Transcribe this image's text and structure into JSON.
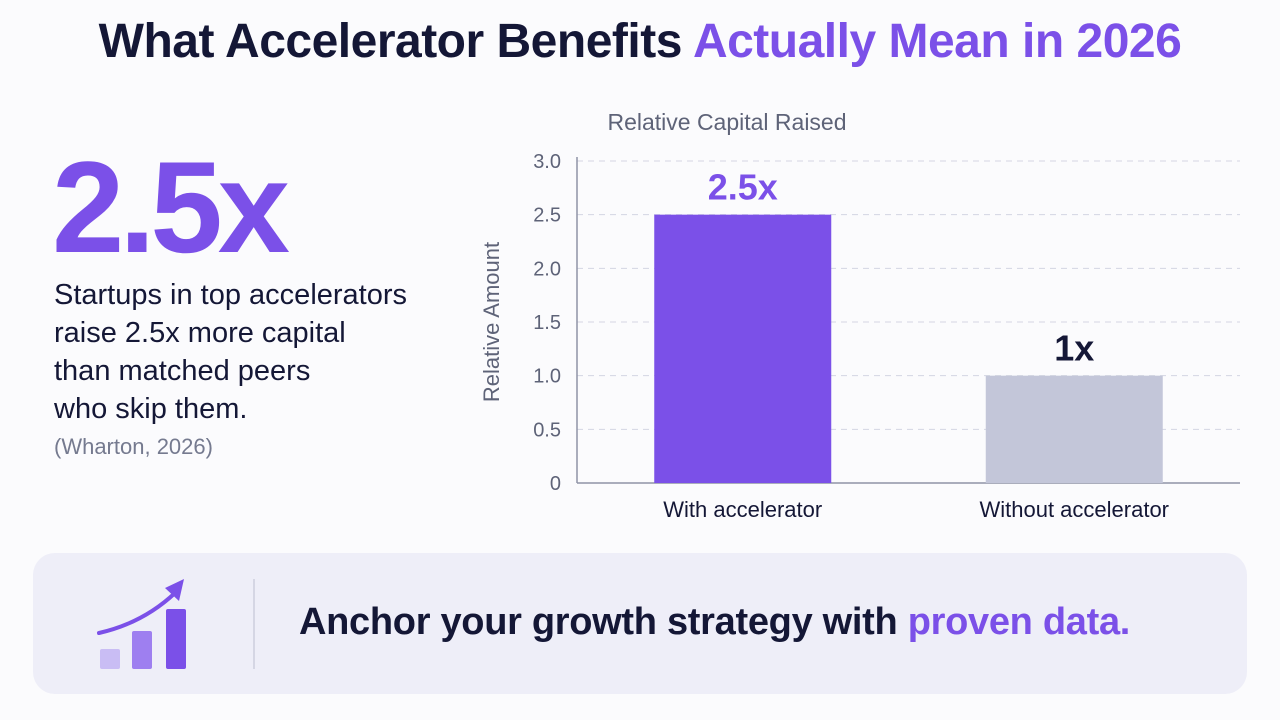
{
  "header": {
    "title_main": "What Accelerator Benefits ",
    "title_accent": "Actually Mean in 2026"
  },
  "stat": {
    "value": "2.5x",
    "description_lines": [
      "Startups in top accelerators",
      "raise 2.5x more capital",
      "than matched peers",
      "who skip them."
    ],
    "source": "(Wharton, 2026)"
  },
  "chart_data": {
    "type": "bar",
    "title": "Relative Capital Raised",
    "ylabel": "Relative Amount",
    "xlabel": "",
    "categories": [
      "With accelerator",
      "Without accelerator"
    ],
    "values": [
      2.5,
      1.0
    ],
    "data_labels": [
      "2.5x",
      "1x"
    ],
    "bar_colors": [
      "#7b50e8",
      "#c3c6d9"
    ],
    "data_label_colors": [
      "#7b50e8",
      "#141736"
    ],
    "ylim": [
      0,
      3.0
    ],
    "yticks": [
      0,
      0.5,
      1.0,
      1.5,
      2.0,
      2.5,
      3.0
    ],
    "ytick_labels": [
      "0",
      "0.5",
      "1.0",
      "1.5",
      "2.0",
      "2.5",
      "3.0"
    ],
    "grid": true,
    "grid_style": "dashed horizontal"
  },
  "banner": {
    "icon": "growth-chart-icon",
    "text_main": "Anchor your growth strategy with ",
    "text_accent": "proven data."
  },
  "colors": {
    "accent": "#7b50e8",
    "text_dark": "#141736",
    "muted": "#5e6378",
    "bar_secondary": "#c3c6d9",
    "banner_bg": "#eeeef8"
  }
}
